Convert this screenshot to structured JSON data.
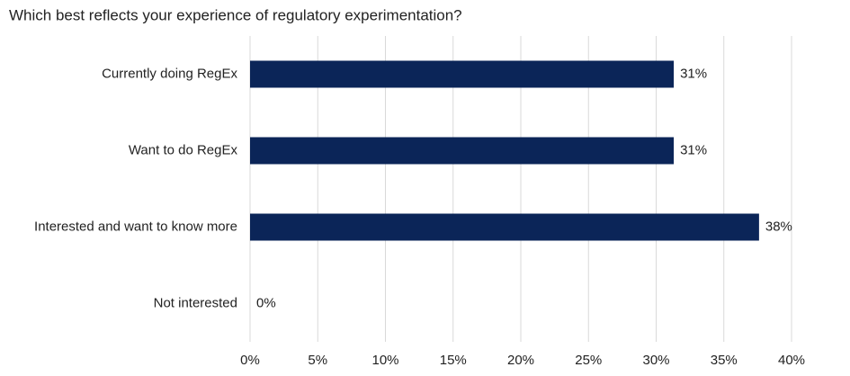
{
  "chart_data": {
    "type": "bar",
    "orientation": "horizontal",
    "title": "Which best reflects your experience of regulatory experimentation?",
    "categories": [
      "Currently doing RegEx",
      "Want to do RegEx",
      "Interested and want to know more",
      "Not interested"
    ],
    "values": [
      31.3,
      31.3,
      37.6,
      0
    ],
    "value_labels": [
      "31%",
      "31%",
      "38%",
      "0%"
    ],
    "color": "#0b2558",
    "xlim": [
      0,
      40
    ],
    "xticks": [
      {
        "value": 0,
        "label": "0%"
      },
      {
        "value": 5,
        "label": "5%"
      },
      {
        "value": 10,
        "label": "10%"
      },
      {
        "value": 15,
        "label": "15%"
      },
      {
        "value": 20,
        "label": "20%"
      },
      {
        "value": 25,
        "label": "25%"
      },
      {
        "value": 30,
        "label": "30%"
      },
      {
        "value": 35,
        "label": "35%"
      },
      {
        "value": 40,
        "label": "40%"
      }
    ],
    "grid": true
  }
}
